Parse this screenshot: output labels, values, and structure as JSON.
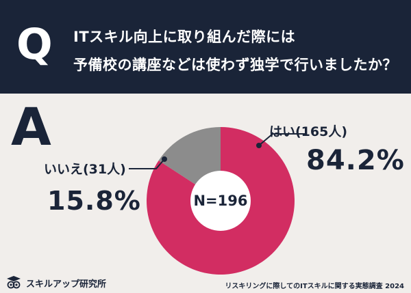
{
  "header": {
    "q_mark": "Q",
    "question_line1": "ITスキル向上に取り組んだ際には",
    "question_line2": "予備校の講座などは使わず独学で行いましたか？"
  },
  "answer_mark": "A",
  "chart_data": {
    "type": "pie",
    "style": "donut",
    "center_label": "N=196",
    "slices": [
      {
        "label": "はい(165人)",
        "value": 84.2,
        "display": "84.2%",
        "count": 165,
        "color": "#d22d62"
      },
      {
        "label": "いいえ(31人)",
        "value": 15.8,
        "display": "15.8%",
        "count": 31,
        "color": "#8c8c8c"
      }
    ]
  },
  "footer": {
    "brand": "スキルアップ研究所",
    "source": "リスキリングに際してのITスキルに関する実態調査 2024"
  },
  "colors": {
    "header_bg": "#1a2438",
    "page_bg": "#f1eeeb",
    "text": "#1a2438",
    "leader_line": "#1a2438"
  }
}
